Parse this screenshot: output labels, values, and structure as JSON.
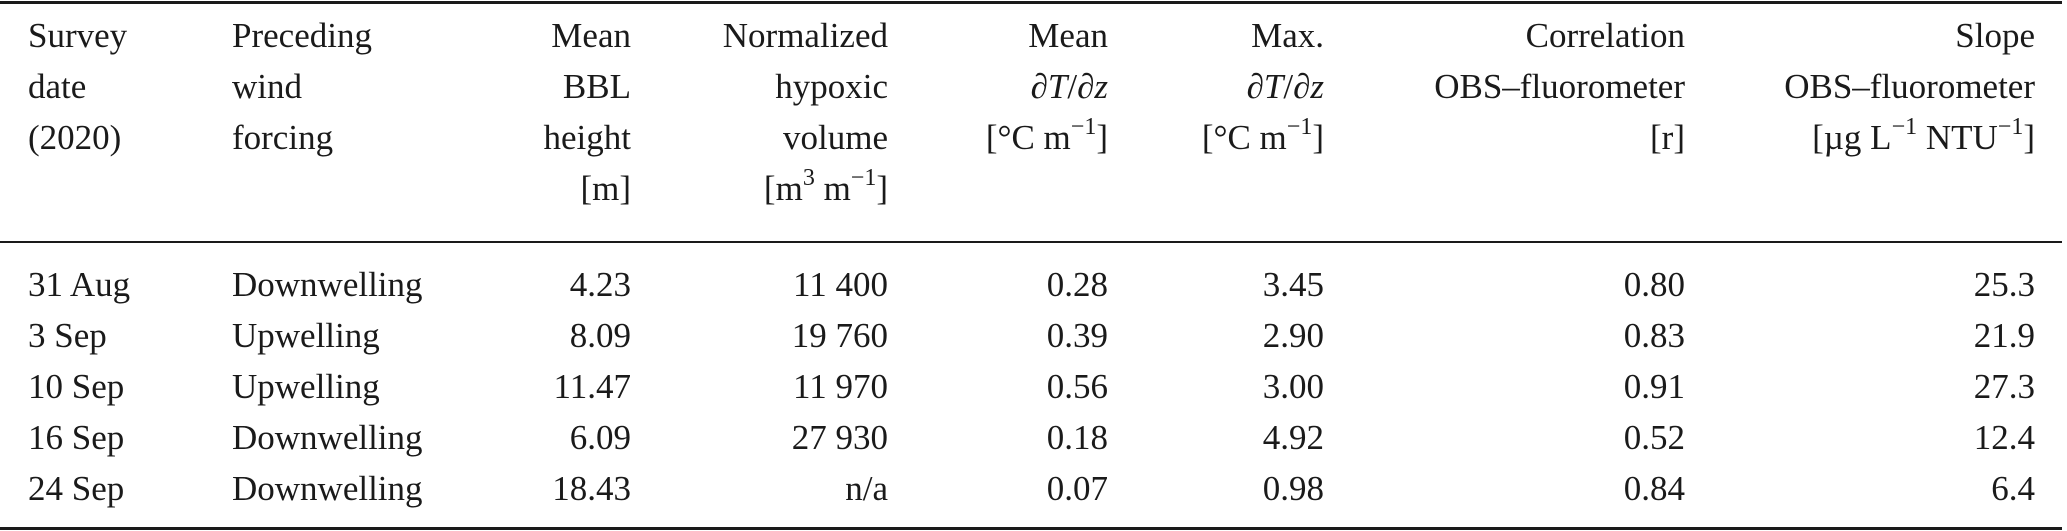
{
  "table": {
    "headers": [
      {
        "lines": [
          "Survey",
          "date",
          "(2020)"
        ]
      },
      {
        "lines": [
          "Preceding",
          "wind",
          "forcing"
        ]
      },
      {
        "lines": [
          "Mean",
          "BBL",
          "height",
          "[m]"
        ]
      },
      {
        "lines": [
          "Normalized",
          "hypoxic",
          "volume"
        ],
        "unit_base1": "[m",
        "unit_sup1": "3",
        "unit_mid": " m",
        "unit_sup2": "−1",
        "unit_end": "]"
      },
      {
        "line1": "Mean",
        "deriv_a": "∂",
        "deriv_T": "T",
        "deriv_slash": "/∂",
        "deriv_z": "z",
        "unit_base": "[°C m",
        "unit_sup": "−1",
        "unit_end": "]"
      },
      {
        "line1": "Max.",
        "deriv_a": "∂",
        "deriv_T": "T",
        "deriv_slash": "/∂",
        "deriv_z": "z",
        "unit_base": "[°C m",
        "unit_sup": "−1",
        "unit_end": "]"
      },
      {
        "lines": [
          "Correlation",
          "OBS–fluorometer",
          "[r]"
        ]
      },
      {
        "line1": "Slope",
        "line2": "OBS–fluorometer",
        "unit_base": "[µg L",
        "unit_sup1": "−1",
        "unit_mid": " NTU",
        "unit_sup2": "−1",
        "unit_end": "]"
      }
    ],
    "rows": [
      [
        "31 Aug",
        "Downwelling",
        "4.23",
        "11 400",
        "0.28",
        "3.45",
        "0.80",
        "25.3"
      ],
      [
        "3 Sep",
        "Upwelling",
        "8.09",
        "19 760",
        "0.39",
        "2.90",
        "0.83",
        "21.9"
      ],
      [
        "10 Sep",
        "Upwelling",
        "11.47",
        "11 970",
        "0.56",
        "3.00",
        "0.91",
        "27.3"
      ],
      [
        "16 Sep",
        "Downwelling",
        "6.09",
        "27 930",
        "0.18",
        "4.92",
        "0.52",
        "12.4"
      ],
      [
        "24 Sep",
        "Downwelling",
        "18.43",
        "n/a",
        "0.07",
        "0.98",
        "0.84",
        "6.4"
      ]
    ]
  }
}
